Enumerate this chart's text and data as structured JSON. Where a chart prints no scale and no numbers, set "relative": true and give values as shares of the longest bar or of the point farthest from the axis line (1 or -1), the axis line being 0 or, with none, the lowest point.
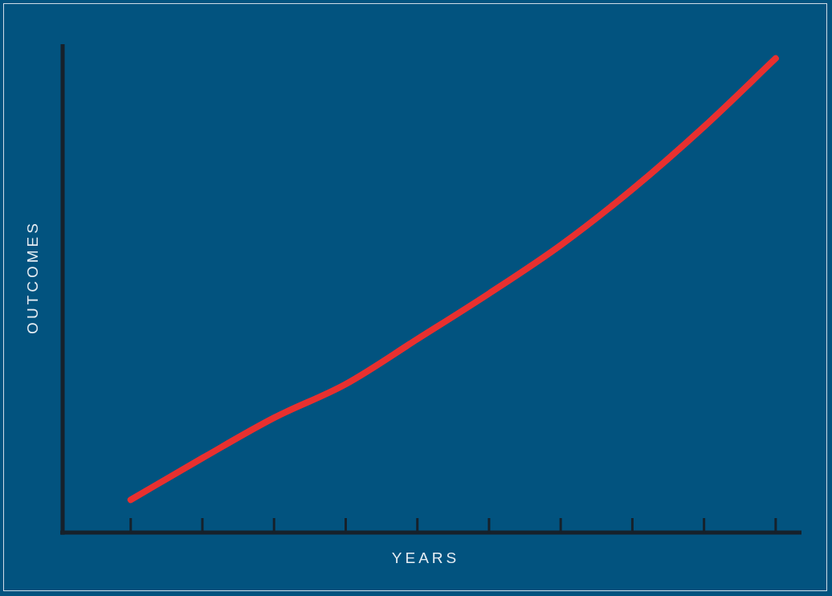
{
  "chart_data": {
    "type": "line",
    "xlabel": "YEARS",
    "ylabel": "OUTCOMES",
    "relative": true,
    "grid": false,
    "legend": false,
    "marker": "none",
    "line_style": "solid",
    "categories": [
      null,
      null,
      null,
      null,
      null,
      null,
      null,
      null,
      null,
      null
    ],
    "series": [
      {
        "color": "#e8302f",
        "values": [
          0.069,
          0.157,
          0.242,
          0.313,
          0.408,
          0.504,
          0.606,
          0.724,
          0.856,
          1
        ]
      }
    ]
  }
}
